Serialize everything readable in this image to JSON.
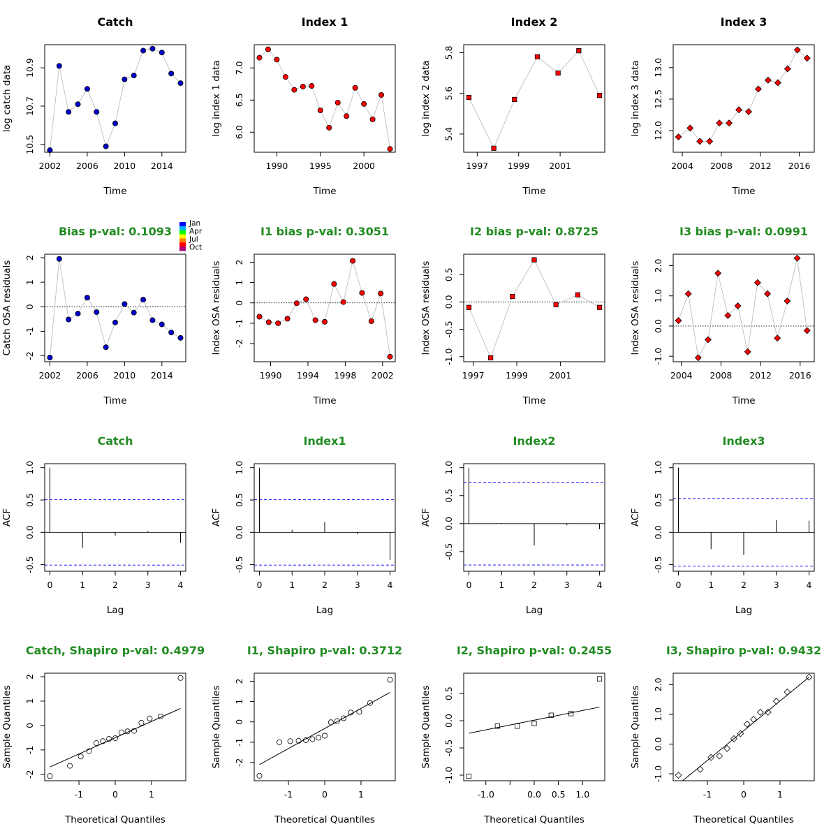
{
  "colors": {
    "title_black": "#000000",
    "title_green": "#228b22",
    "point_catch": "#0000cd",
    "point_index": "#ff0000",
    "line": "#bebebe",
    "ci": "#0000ff"
  },
  "legend": {
    "labels": [
      "Jan",
      "Apr",
      "Jul",
      "Oct"
    ],
    "colors": [
      "#0000ff",
      "#00b4ff",
      "#00ff00",
      "#ffff00",
      "#ff8000",
      "#ff0000",
      "#b00080"
    ]
  },
  "chart_data": [
    {
      "type": "line",
      "title": "Catch",
      "title_color": "black",
      "marker": "circle",
      "marker_fill": "#0000cd",
      "xlabel": "Time",
      "ylabel": "log catch data",
      "xlim": [
        2002,
        2016
      ],
      "ylim": [
        10.48,
        11.0
      ],
      "xticks": [
        2002,
        2006,
        2010,
        2014
      ],
      "yticks": [
        10.5,
        10.7,
        10.9
      ],
      "ytick_labels": [
        "10.5",
        "10.7",
        "10.9"
      ],
      "x": [
        2002,
        2003,
        2004,
        2005,
        2006,
        2007,
        2008,
        2009,
        2010,
        2011,
        2012,
        2013,
        2014,
        2015,
        2016
      ],
      "y": [
        10.47,
        10.91,
        10.67,
        10.71,
        10.79,
        10.67,
        10.49,
        10.61,
        10.84,
        10.86,
        10.99,
        11.0,
        10.98,
        10.87,
        10.82
      ]
    },
    {
      "type": "line",
      "title": "Index 1",
      "title_color": "black",
      "marker": "circle",
      "marker_fill": "#ff0000",
      "xlabel": "Time",
      "ylabel": "log index 1 data",
      "xlim": [
        1988,
        2003
      ],
      "ylim": [
        5.75,
        7.3
      ],
      "xticks": [
        1990,
        1995,
        2000
      ],
      "yticks": [
        6.0,
        6.5,
        7.0
      ],
      "ytick_labels": [
        "6.0",
        "6.5",
        "7.0"
      ],
      "x": [
        1988,
        1989,
        1990,
        1991,
        1992,
        1993,
        1994,
        1995,
        1996,
        1997,
        1998,
        1999,
        2000,
        2001,
        2002,
        2003
      ],
      "y": [
        7.16,
        7.29,
        7.13,
        6.86,
        6.66,
        6.71,
        6.72,
        6.34,
        6.07,
        6.46,
        6.25,
        6.69,
        6.44,
        6.2,
        6.58,
        5.74
      ]
    },
    {
      "type": "line",
      "title": "Index 2",
      "title_color": "black",
      "marker": "square",
      "marker_fill": "#ff0000",
      "xlabel": "Time",
      "ylabel": "log index 2 data",
      "xlim": [
        1996.6,
        2002.9
      ],
      "ylim": [
        5.33,
        5.82
      ],
      "xticks": [
        1997,
        1999,
        2001
      ],
      "yticks": [
        5.4,
        5.6,
        5.8
      ],
      "ytick_labels": [
        "5.4",
        "5.6",
        "5.8"
      ],
      "x": [
        1996.6,
        1997.8,
        1998.8,
        1999.9,
        2000.9,
        2001.9,
        2002.9
      ],
      "y": [
        5.58,
        5.33,
        5.57,
        5.78,
        5.7,
        5.81,
        5.59
      ]
    },
    {
      "type": "line",
      "title": "Index 3",
      "title_color": "black",
      "marker": "diamond",
      "marker_fill": "#ff0000",
      "xlabel": "Time",
      "ylabel": "log index 3 data",
      "xlim": [
        2003.6,
        2017.0
      ],
      "ylim": [
        11.72,
        13.3
      ],
      "xticks": [
        2004,
        2008,
        2012,
        2016
      ],
      "yticks": [
        12.0,
        12.5,
        13.0
      ],
      "ytick_labels": [
        "12.0",
        "12.5",
        "13.0"
      ],
      "x": [
        2003.6,
        2004.8,
        2005.8,
        2006.8,
        2007.8,
        2008.8,
        2009.8,
        2010.8,
        2011.8,
        2012.8,
        2013.8,
        2014.8,
        2015.8,
        2016.8
      ],
      "y": [
        11.9,
        12.04,
        11.83,
        11.83,
        12.12,
        12.12,
        12.33,
        12.3,
        12.66,
        12.8,
        12.76,
        12.98,
        13.28,
        13.15
      ]
    },
    {
      "type": "line",
      "title": "Bias p-val: 0.1093",
      "title_color": "green",
      "marker": "circle",
      "marker_fill": "#0000cd",
      "zero_line": true,
      "has_legend": true,
      "xlabel": "Time",
      "ylabel": "Catch OSA residuals",
      "xlim": [
        2002,
        2016
      ],
      "ylim": [
        -2.08,
        1.98
      ],
      "xticks": [
        2002,
        2006,
        2010,
        2014
      ],
      "yticks": [
        -2,
        -1,
        0,
        1,
        2
      ],
      "ytick_labels": [
        "-2",
        "-1",
        "0",
        "1",
        "2"
      ],
      "x": [
        2002,
        2003,
        2004,
        2005,
        2006,
        2007,
        2008,
        2009,
        2010,
        2011,
        2012,
        2013,
        2014,
        2015,
        2016
      ],
      "y": [
        -2.07,
        1.95,
        -0.52,
        -0.28,
        0.37,
        -0.22,
        -1.65,
        -0.64,
        0.11,
        -0.24,
        0.29,
        -0.55,
        -0.72,
        -1.05,
        -1.27
      ]
    },
    {
      "type": "line",
      "title": "I1 bias p-val: 0.3051",
      "title_color": "green",
      "marker": "circle",
      "marker_fill": "#ff0000",
      "zero_line": true,
      "xlabel": "Time",
      "ylabel": "Index OSA residuals",
      "xlim": [
        1988.8,
        2002.8
      ],
      "ylim": [
        -2.7,
        2.2
      ],
      "xticks": [
        1990,
        1994,
        1998,
        2002
      ],
      "yticks": [
        -2,
        -1,
        0,
        1,
        2
      ],
      "ytick_labels": [
        "-2",
        "-1",
        "0",
        "1",
        "2"
      ],
      "x": [
        1988.8,
        1989.8,
        1990.8,
        1991.8,
        1992.8,
        1993.8,
        1994.8,
        1995.8,
        1996.8,
        1997.8,
        1998.8,
        1999.8,
        2000.8,
        2001.8,
        2002.8
      ],
      "y": [
        -0.68,
        -0.95,
        -1.0,
        -0.78,
        -0.02,
        0.18,
        -0.85,
        -0.93,
        0.93,
        0.04,
        2.07,
        0.49,
        -0.9,
        0.46,
        -2.65
      ]
    },
    {
      "type": "line",
      "title": "I2 bias p-val: 0.8725",
      "title_color": "green",
      "marker": "square",
      "marker_fill": "#ff0000",
      "zero_line": true,
      "xlabel": "Time",
      "ylabel": "Index OSA residuals",
      "xlim": [
        1996.8,
        2002.8
      ],
      "ylim": [
        -1.02,
        0.8
      ],
      "xticks": [
        1997,
        1999,
        2001
      ],
      "yticks": [
        -1.0,
        -0.5,
        0.0,
        0.5
      ],
      "ytick_labels": [
        "-1.0",
        "-0.5",
        "0.0",
        "0.5"
      ],
      "x": [
        1996.8,
        1997.8,
        1998.8,
        1999.8,
        2000.8,
        2001.8,
        2002.8
      ],
      "y": [
        -0.1,
        -1.02,
        0.1,
        0.77,
        -0.05,
        0.13,
        -0.1
      ]
    },
    {
      "type": "line",
      "title": "I3 bias p-val: 0.0991",
      "title_color": "green",
      "marker": "diamond",
      "marker_fill": "#ff0000",
      "zero_line": true,
      "xlabel": "Time",
      "ylabel": "Index OSA residuals",
      "xlim": [
        2003.7,
        2016.9
      ],
      "ylim": [
        -1.05,
        2.25
      ],
      "xticks": [
        2004,
        2008,
        2012,
        2016
      ],
      "yticks": [
        -1.0,
        0.0,
        1.0,
        2.0
      ],
      "ytick_labels": [
        "-1.0",
        "0.0",
        "1.0",
        "2.0"
      ],
      "x": [
        2003.7,
        2004.7,
        2005.7,
        2006.7,
        2007.7,
        2008.7,
        2009.7,
        2010.7,
        2011.7,
        2012.7,
        2013.7,
        2014.7,
        2015.7,
        2016.7
      ],
      "y": [
        0.18,
        1.07,
        -1.05,
        -0.45,
        1.75,
        0.35,
        0.67,
        -0.85,
        1.44,
        1.07,
        -0.4,
        0.83,
        2.25,
        -0.15
      ]
    },
    {
      "type": "acf",
      "title": "Catch",
      "title_color": "green",
      "xlabel": "Lag",
      "ylabel": "ACF",
      "xlim": [
        0,
        4
      ],
      "ylim": [
        -0.54,
        1.0
      ],
      "xticks": [
        0,
        1,
        2,
        3,
        4
      ],
      "yticks": [
        -0.5,
        0.0,
        0.5,
        1.0
      ],
      "ytick_labels": [
        "-0.5",
        "0.0",
        "0.5",
        "1.0"
      ],
      "lags": [
        0,
        1,
        2,
        3,
        4
      ],
      "values": [
        1.0,
        -0.24,
        -0.05,
        0.02,
        -0.16
      ],
      "ci": 0.506
    },
    {
      "type": "acf",
      "title": "Index1",
      "title_color": "green",
      "xlabel": "Lag",
      "ylabel": "ACF",
      "xlim": [
        0,
        4
      ],
      "ylim": [
        -0.54,
        1.0
      ],
      "xticks": [
        0,
        1,
        2,
        3,
        4
      ],
      "yticks": [
        -0.5,
        0.0,
        0.5,
        1.0
      ],
      "ytick_labels": [
        "-0.5",
        "0.0",
        "0.5",
        "1.0"
      ],
      "lags": [
        0,
        1,
        2,
        3,
        4
      ],
      "values": [
        1.0,
        0.04,
        0.16,
        -0.03,
        -0.43
      ],
      "ci": 0.506
    },
    {
      "type": "acf",
      "title": "Index2",
      "title_color": "green",
      "xlabel": "Lag",
      "ylabel": "ACF",
      "xlim": [
        0,
        4
      ],
      "ylim": [
        -0.78,
        1.0
      ],
      "xticks": [
        0,
        1,
        2,
        3,
        4
      ],
      "yticks": [
        -0.5,
        0.0,
        0.5,
        1.0
      ],
      "ytick_labels": [
        "-0.5",
        "0.0",
        "0.5",
        "1.0"
      ],
      "lags": [
        0,
        1,
        2,
        3,
        4
      ],
      "values": [
        1.0,
        0.01,
        -0.39,
        -0.03,
        -0.1
      ],
      "ci": 0.74
    },
    {
      "type": "acf",
      "title": "Index3",
      "title_color": "green",
      "xlabel": "Lag",
      "ylabel": "ACF",
      "xlim": [
        0,
        4
      ],
      "ylim": [
        -0.54,
        1.0
      ],
      "xticks": [
        0,
        1,
        2,
        3,
        4
      ],
      "yticks": [
        -0.5,
        0.0,
        0.5,
        1.0
      ],
      "ytick_labels": [
        "-0.5",
        "0.0",
        "0.5",
        "1.0"
      ],
      "lags": [
        0,
        1,
        2,
        3,
        4
      ],
      "values": [
        1.0,
        -0.26,
        -0.35,
        0.19,
        0.18
      ],
      "ci": 0.524
    },
    {
      "type": "qq",
      "title": "Catch, Shapiro p-val: 0.4979",
      "title_color": "green",
      "marker": "circle",
      "xlabel": "Theoretical Quantiles",
      "ylabel": "Sample Quantiles",
      "xlim": [
        -1.8,
        1.8
      ],
      "ylim": [
        -2.1,
        1.98
      ],
      "xticks": [
        -1,
        0,
        1
      ],
      "xtick_labels": [
        "-1",
        "0",
        "1"
      ],
      "yticks": [
        -2,
        -1,
        0,
        1,
        2
      ],
      "ytick_labels": [
        "-2",
        "-1",
        "0",
        "1",
        "2"
      ],
      "x": [
        -1.8,
        -1.25,
        -0.95,
        -0.72,
        -0.52,
        -0.34,
        -0.17,
        0.0,
        0.17,
        0.34,
        0.52,
        0.72,
        0.95,
        1.25,
        1.8
      ],
      "y": [
        -2.07,
        -1.65,
        -1.27,
        -1.05,
        -0.72,
        -0.64,
        -0.55,
        -0.52,
        -0.28,
        -0.24,
        -0.22,
        0.11,
        0.29,
        0.37,
        1.95
      ],
      "fit_line": [
        [
          -1.8,
          -1.7
        ],
        [
          1.8,
          0.7
        ]
      ]
    },
    {
      "type": "qq",
      "title": "I1, Shapiro p-val: 0.3712",
      "title_color": "green",
      "marker": "circle",
      "xlabel": "Theoretical Quantiles",
      "ylabel": "Sample Quantiles",
      "xlim": [
        -1.8,
        1.8
      ],
      "ylim": [
        -2.7,
        2.2
      ],
      "xticks": [
        -1,
        0,
        1
      ],
      "xtick_labels": [
        "-1",
        "0",
        "1"
      ],
      "yticks": [
        -2,
        -1,
        0,
        1,
        2
      ],
      "ytick_labels": [
        "-2",
        "-1",
        "0",
        "1",
        "2"
      ],
      "x": [
        -1.8,
        -1.25,
        -0.95,
        -0.72,
        -0.52,
        -0.34,
        -0.17,
        0.0,
        0.17,
        0.34,
        0.52,
        0.72,
        0.95,
        1.25,
        1.8
      ],
      "y": [
        -2.65,
        -1.0,
        -0.95,
        -0.93,
        -0.9,
        -0.85,
        -0.78,
        -0.68,
        -0.02,
        0.04,
        0.18,
        0.46,
        0.49,
        0.93,
        2.07
      ],
      "fit_line": [
        [
          -1.8,
          -2.1
        ],
        [
          1.8,
          1.45
        ]
      ]
    },
    {
      "type": "qq",
      "title": "I2, Shapiro p-val: 0.2455",
      "title_color": "green",
      "marker": "square",
      "xlabel": "Theoretical Quantiles",
      "ylabel": "Sample Quantiles",
      "xlim": [
        -1.35,
        1.35
      ],
      "ylim": [
        -1.03,
        0.8
      ],
      "xticks": [
        -1.0,
        -0.5,
        0.0,
        0.5,
        1.0
      ],
      "xtick_labels": [
        "-1.0",
        "",
        "0.0",
        "0.5",
        "1.0"
      ],
      "yticks": [
        -1.0,
        -0.5,
        0.0,
        0.5
      ],
      "ytick_labels": [
        "-1.0",
        "-0.5",
        "0.0",
        "0.5"
      ],
      "x": [
        -1.35,
        -0.76,
        -0.35,
        0.0,
        0.35,
        0.76,
        1.35
      ],
      "y": [
        -1.02,
        -0.1,
        -0.1,
        -0.05,
        0.1,
        0.13,
        0.77
      ],
      "fit_line": [
        [
          -1.35,
          -0.23
        ],
        [
          1.35,
          0.25
        ]
      ]
    },
    {
      "type": "qq",
      "title": "I3, Shapiro p-val: 0.9432",
      "title_color": "green",
      "marker": "diamond",
      "xlabel": "Theoretical Quantiles",
      "ylabel": "Sample Quantiles",
      "xlim": [
        -1.8,
        1.8
      ],
      "ylim": [
        -1.1,
        2.25
      ],
      "xticks": [
        -1,
        0,
        1
      ],
      "xtick_labels": [
        "-1",
        "0",
        "1"
      ],
      "yticks": [
        -1.0,
        0.0,
        1.0,
        2.0
      ],
      "ytick_labels": [
        "-1.0",
        "0.0",
        "1.0",
        "2.0"
      ],
      "x": [
        -1.8,
        -1.2,
        -0.9,
        -0.67,
        -0.46,
        -0.27,
        -0.09,
        0.09,
        0.27,
        0.46,
        0.67,
        0.9,
        1.2,
        1.8
      ],
      "y": [
        -1.05,
        -0.85,
        -0.45,
        -0.4,
        -0.15,
        0.18,
        0.35,
        0.67,
        0.83,
        1.07,
        1.07,
        1.44,
        1.75,
        2.25
      ],
      "fit_line": [
        [
          -1.8,
          -1.35
        ],
        [
          1.8,
          2.25
        ]
      ]
    }
  ]
}
